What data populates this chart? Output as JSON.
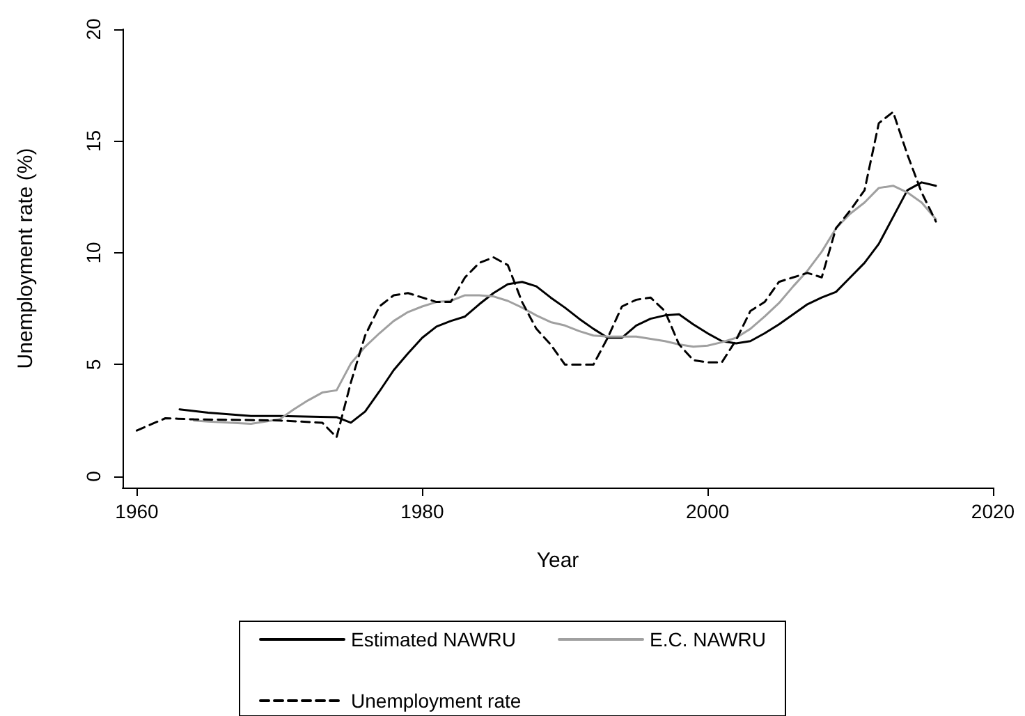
{
  "chart_data": {
    "type": "line",
    "xlabel": "Year",
    "ylabel": "Unemployment rate (%)",
    "xlim": [
      1959,
      2020
    ],
    "xticks": [
      1960,
      1980,
      2000,
      2020
    ],
    "ylim": [
      -0.5,
      20
    ],
    "yticks": [
      0,
      5,
      10,
      15,
      20
    ],
    "grid": false,
    "legend": "bottom",
    "marker": "none",
    "series": [
      {
        "name": "Estimated NAWRU",
        "color": "#000000",
        "line_style": "solid",
        "x": [
          1963,
          1965,
          1968,
          1970,
          1974,
          1975,
          1976,
          1977,
          1978,
          1979,
          1980,
          1981,
          1982,
          1983,
          1984,
          1985,
          1986,
          1987,
          1988,
          1989,
          1990,
          1991,
          1992,
          1993,
          1994,
          1995,
          1996,
          1997,
          1998,
          1999,
          2000,
          2001,
          2002,
          2003,
          2004,
          2005,
          2006,
          2007,
          2008,
          2009,
          2010,
          2011,
          2012,
          2013,
          2014,
          2015,
          2016
        ],
        "values": [
          3.0,
          2.85,
          2.7,
          2.7,
          2.65,
          2.4,
          2.9,
          3.8,
          4.75,
          5.5,
          6.2,
          6.7,
          6.95,
          7.15,
          7.7,
          8.2,
          8.6,
          8.7,
          8.5,
          8.0,
          7.55,
          7.05,
          6.6,
          6.2,
          6.2,
          6.75,
          7.05,
          7.2,
          7.25,
          6.8,
          6.4,
          6.05,
          5.95,
          6.05,
          6.4,
          6.8,
          7.25,
          7.7,
          8.0,
          8.25,
          8.9,
          9.55,
          10.4,
          11.6,
          12.8,
          13.15,
          13.0
        ]
      },
      {
        "name": "E.C. NAWRU",
        "color": "#a0a0a0",
        "line_style": "solid",
        "x": [
          1964,
          1965,
          1968,
          1970,
          1971,
          1972,
          1973,
          1974,
          1975,
          1976,
          1977,
          1978,
          1979,
          1980,
          1981,
          1982,
          1983,
          1984,
          1985,
          1986,
          1987,
          1988,
          1989,
          1990,
          1991,
          1992,
          1993,
          1994,
          1995,
          1996,
          1997,
          1998,
          1999,
          2000,
          2001,
          2002,
          2003,
          2004,
          2005,
          2006,
          2007,
          2008,
          2009,
          2010,
          2011,
          2012,
          2013,
          2014,
          2015,
          2016
        ],
        "values": [
          2.5,
          2.45,
          2.35,
          2.55,
          3.0,
          3.4,
          3.75,
          3.85,
          5.05,
          5.8,
          6.4,
          6.95,
          7.35,
          7.6,
          7.8,
          7.85,
          8.1,
          8.1,
          8.05,
          7.85,
          7.55,
          7.2,
          6.9,
          6.75,
          6.5,
          6.3,
          6.25,
          6.25,
          6.25,
          6.15,
          6.05,
          5.9,
          5.8,
          5.85,
          6.0,
          6.2,
          6.6,
          7.15,
          7.75,
          8.5,
          9.2,
          10.05,
          11.1,
          11.75,
          12.25,
          12.9,
          13.0,
          12.7,
          12.25,
          11.5
        ]
      },
      {
        "name": "Unemployment rate",
        "color": "#000000",
        "line_style": "dashed",
        "x": [
          1960,
          1962,
          1964,
          1970,
          1973,
          1974,
          1975,
          1976,
          1977,
          1978,
          1979,
          1980,
          1981,
          1982,
          1983,
          1984,
          1985,
          1986,
          1987,
          1988,
          1989,
          1990,
          1991,
          1992,
          1993,
          1994,
          1995,
          1996,
          1997,
          1998,
          1999,
          2000,
          2001,
          2002,
          2003,
          2004,
          2005,
          2006,
          2007,
          2008,
          2009,
          2010,
          2011,
          2012,
          2013,
          2014,
          2015,
          2016
        ],
        "values": [
          2.05,
          2.6,
          2.55,
          2.5,
          2.4,
          1.75,
          4.2,
          6.3,
          7.6,
          8.1,
          8.2,
          8.0,
          7.8,
          7.8,
          8.9,
          9.55,
          9.8,
          9.45,
          7.8,
          6.6,
          5.9,
          5.0,
          5.0,
          5.0,
          6.2,
          7.6,
          7.9,
          8.0,
          7.4,
          5.9,
          5.2,
          5.1,
          5.1,
          6.1,
          7.4,
          7.8,
          8.7,
          8.9,
          9.1,
          8.9,
          11.1,
          11.9,
          12.8,
          15.8,
          16.3,
          14.4,
          12.7,
          11.4
        ]
      }
    ]
  }
}
